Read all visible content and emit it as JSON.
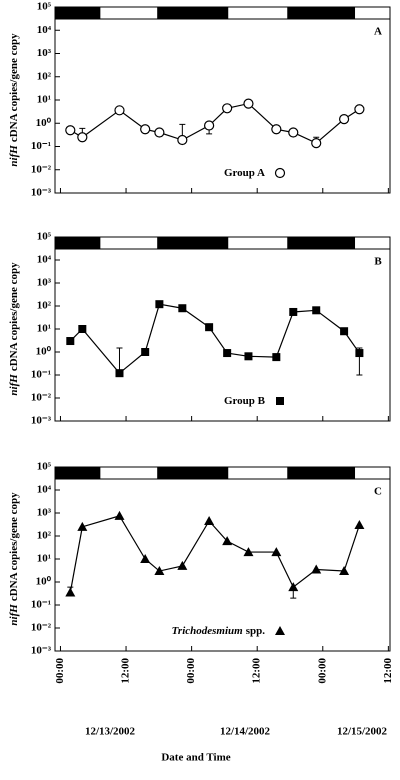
{
  "x_axis": {
    "xlim": [
      -1,
      60.3
    ],
    "xticks": [
      {
        "value": 0,
        "label": "00:00"
      },
      {
        "value": 12,
        "label": "12:00"
      },
      {
        "value": 24,
        "label": "00:00"
      },
      {
        "value": 36,
        "label": "12:00"
      },
      {
        "value": 48,
        "label": "00:00"
      },
      {
        "value": 60,
        "label": "12:00"
      }
    ],
    "dates": [
      "12/13/2002",
      "12/14/2002",
      "12/15/2002"
    ],
    "xlabel": "Date and Time"
  },
  "dark_periods": [
    [
      -1,
      7.3
    ],
    [
      17.7,
      30.7
    ],
    [
      41.5,
      53.9
    ]
  ],
  "chart_data": [
    {
      "type": "line",
      "log_y": true,
      "panel": "A",
      "ylabel": [
        "nifH",
        "cDNA copies/gene copy"
      ],
      "legend": [
        "Group A"
      ],
      "marker": "circle",
      "color": "#000000",
      "ylim": [
        0.001,
        100000
      ],
      "yticks": [
        {
          "value": 100000,
          "label": "10⁵"
        },
        {
          "value": 10000,
          "label": "10⁴"
        },
        {
          "value": 1000,
          "label": "10³"
        },
        {
          "value": 100,
          "label": "10²"
        },
        {
          "value": 10,
          "label": "10¹"
        },
        {
          "value": 1,
          "label": "10⁰"
        },
        {
          "value": 0.1,
          "label": "10⁻¹"
        },
        {
          "value": 0.01,
          "label": "10⁻²"
        },
        {
          "value": 0.001,
          "label": "10⁻³"
        }
      ],
      "x": [
        1.8,
        4.0,
        10.8,
        15.5,
        18.1,
        22.3,
        27.2,
        30.5,
        34.4,
        39.5,
        42.6,
        46.8,
        51.9,
        54.7
      ],
      "values": [
        0.5,
        0.25,
        3.6,
        0.55,
        0.4,
        0.19,
        0.8,
        4.4,
        7,
        0.55,
        0.4,
        0.14,
        1.5,
        4
      ],
      "error_high": [
        null,
        0.6,
        null,
        null,
        null,
        0.9,
        null,
        null,
        null,
        null,
        null,
        0.25,
        null,
        null
      ],
      "error_low": [
        null,
        null,
        null,
        null,
        null,
        null,
        0.35,
        null,
        null,
        null,
        null,
        null,
        null,
        null
      ]
    },
    {
      "type": "line",
      "log_y": true,
      "panel": "B",
      "ylabel": [
        "nifH",
        "cDNA copies/gene copy"
      ],
      "legend": [
        "Group B"
      ],
      "marker": "square",
      "color": "#000000",
      "ylim": [
        0.001,
        100000
      ],
      "yticks": [
        {
          "value": 100000,
          "label": "10⁵"
        },
        {
          "value": 10000,
          "label": "10⁴"
        },
        {
          "value": 1000,
          "label": "10³"
        },
        {
          "value": 100,
          "label": "10²"
        },
        {
          "value": 10,
          "label": "10¹"
        },
        {
          "value": 1,
          "label": "10⁰"
        },
        {
          "value": 0.1,
          "label": "10⁻¹"
        },
        {
          "value": 0.01,
          "label": "10⁻²"
        },
        {
          "value": 0.001,
          "label": "10⁻³"
        }
      ],
      "x": [
        1.8,
        4.0,
        10.8,
        15.5,
        18.1,
        22.3,
        27.2,
        30.5,
        34.4,
        39.5,
        42.6,
        46.8,
        51.9,
        54.7
      ],
      "values": [
        3,
        10,
        0.12,
        1,
        120,
        80,
        12,
        0.9,
        0.65,
        0.6,
        55,
        65,
        8,
        0.9
      ],
      "error_high": [
        null,
        null,
        1.5,
        null,
        null,
        null,
        null,
        null,
        null,
        null,
        null,
        null,
        null,
        1.5
      ],
      "error_low": [
        null,
        null,
        null,
        null,
        null,
        null,
        null,
        null,
        null,
        null,
        null,
        null,
        null,
        0.1
      ]
    },
    {
      "type": "line",
      "log_y": true,
      "panel": "C",
      "ylabel": [
        "nifH",
        "cDNA copies/gene copy"
      ],
      "legend": [
        "Trichodesmium",
        "spp."
      ],
      "marker": "triangle",
      "color": "#000000",
      "ylim": [
        0.001,
        100000
      ],
      "yticks": [
        {
          "value": 100000,
          "label": "10⁵"
        },
        {
          "value": 10000,
          "label": "10⁴"
        },
        {
          "value": 1000,
          "label": "10³"
        },
        {
          "value": 100,
          "label": "10²"
        },
        {
          "value": 10,
          "label": "10¹"
        },
        {
          "value": 1,
          "label": "10⁰"
        },
        {
          "value": 0.1,
          "label": "10⁻¹"
        },
        {
          "value": 0.01,
          "label": "10⁻²"
        },
        {
          "value": 0.001,
          "label": "10⁻³"
        }
      ],
      "x": [
        1.8,
        4.0,
        10.8,
        15.5,
        18.1,
        22.3,
        27.2,
        30.5,
        34.4,
        39.5,
        42.6,
        46.8,
        51.9,
        54.7
      ],
      "values": [
        0.35,
        250,
        750,
        10,
        3,
        5,
        450,
        60,
        20,
        20,
        0.6,
        3.5,
        3,
        300
      ],
      "error_high": [
        0.6,
        null,
        null,
        null,
        null,
        null,
        null,
        null,
        null,
        null,
        null,
        null,
        null,
        null
      ],
      "error_low": [
        null,
        null,
        null,
        null,
        null,
        null,
        null,
        null,
        null,
        null,
        0.2,
        null,
        null,
        null
      ]
    }
  ]
}
